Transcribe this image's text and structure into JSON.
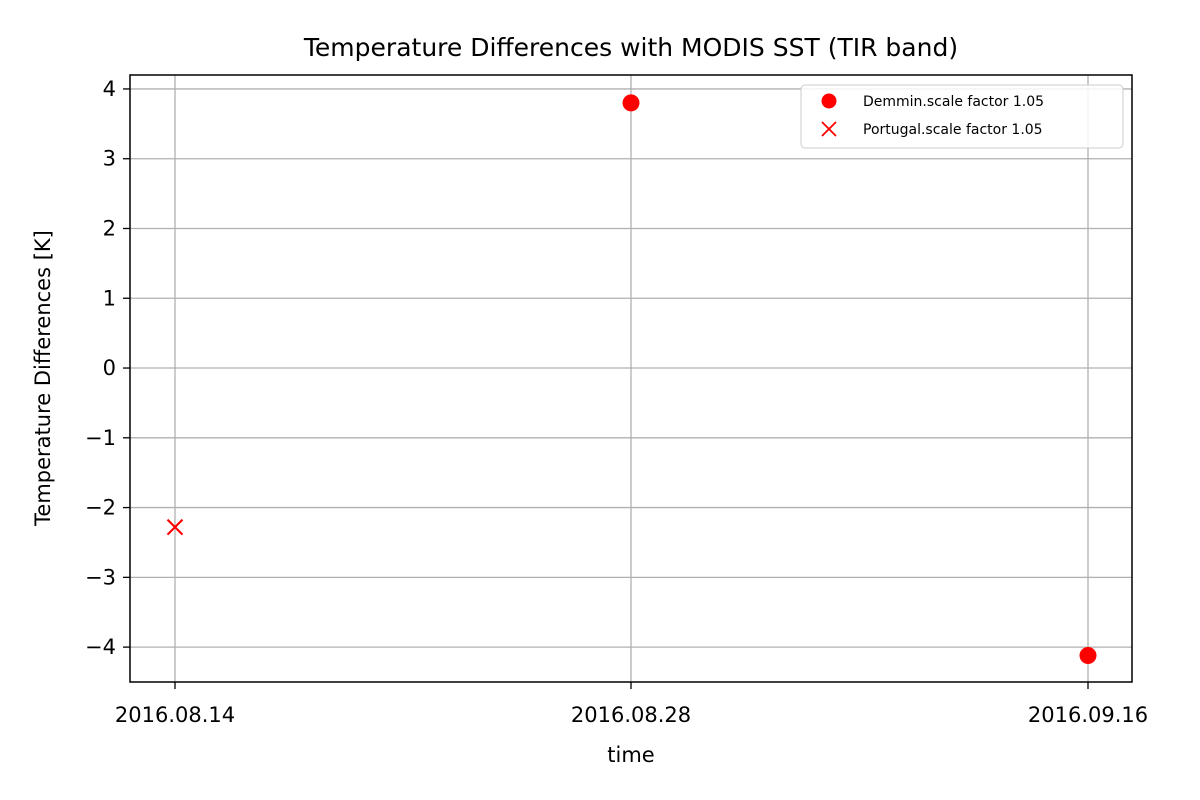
{
  "chart_data": {
    "type": "scatter",
    "title": "Temperature Differences with MODIS SST (TIR band)",
    "xlabel": "time",
    "ylabel": "Temperature Differences [K]",
    "x_categories": [
      "2016.08.14",
      "2016.08.28",
      "2016.09.16"
    ],
    "ylim": [
      -4.5,
      4.2
    ],
    "yticks": [
      4,
      3,
      2,
      1,
      0,
      -1,
      -2,
      -3,
      -4
    ],
    "ytick_labels": [
      "4",
      "3",
      "2",
      "1",
      "0",
      "−1",
      "−2",
      "−3",
      "−4"
    ],
    "grid": true,
    "legend_position": "top-right",
    "series": [
      {
        "name": "Demmin.scale factor 1.05",
        "marker": "circle",
        "color": "#ff0000",
        "points": [
          {
            "x": "2016.08.28",
            "y": 3.8
          },
          {
            "x": "2016.09.16",
            "y": -4.12
          }
        ]
      },
      {
        "name": "Portugal.scale factor 1.05",
        "marker": "x",
        "color": "#ff0000",
        "points": [
          {
            "x": "2016.08.14",
            "y": -2.28
          }
        ]
      }
    ]
  }
}
